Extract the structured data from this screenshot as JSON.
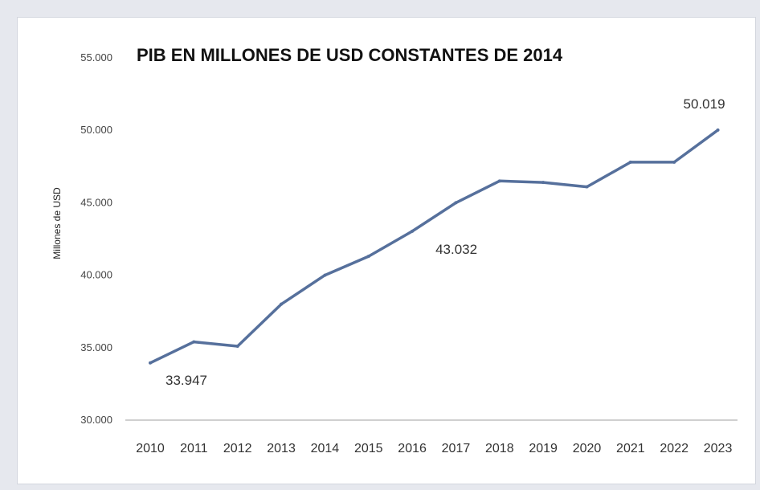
{
  "chart_data": {
    "type": "line",
    "title": "PIB EN MILLONES DE USD CONSTANTES DE 2014",
    "xlabel": "",
    "ylabel": "Millones de USD",
    "x": [
      "2010",
      "2011",
      "2012",
      "2013",
      "2014",
      "2015",
      "2016",
      "2017",
      "2018",
      "2019",
      "2020",
      "2021",
      "2022",
      "2023"
    ],
    "series": [
      {
        "values": [
          33947,
          35400,
          35100,
          38000,
          40000,
          41300,
          43032,
          45000,
          46500,
          46400,
          46100,
          47800,
          47800,
          50019
        ]
      }
    ],
    "ylim": [
      30000,
      55000
    ],
    "yticks": [
      "30.000",
      "35.000",
      "40.000",
      "45.000",
      "50.000",
      "55.000"
    ],
    "ytick_values": [
      30000,
      35000,
      40000,
      45000,
      50000,
      55000
    ],
    "data_labels": [
      {
        "index": 0,
        "text": "33.947"
      },
      {
        "index": 6,
        "text": "43.032"
      },
      {
        "index": 13,
        "text": "50.019"
      }
    ],
    "grid": false,
    "legend": "none",
    "line_color": "#56709c",
    "axis_color": "#bfbfbf"
  }
}
